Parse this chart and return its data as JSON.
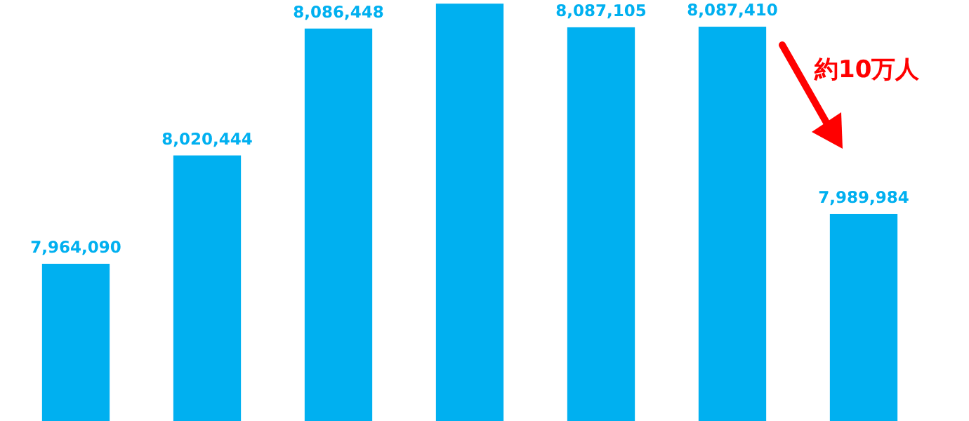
{
  "chart_data": {
    "type": "bar",
    "categories": [
      null,
      null,
      null,
      null,
      null,
      null,
      null
    ],
    "values": [
      7964090,
      8020444,
      8086448,
      8099400,
      8087105,
      8087410,
      7989984
    ],
    "value_labels": [
      "7,964,090",
      "8,020,444",
      "8,086,448",
      null,
      "8,087,105",
      "8,087,410",
      "7,989,984"
    ],
    "color": "#00b0f0",
    "ylim": [
      7882300,
      8101300
    ],
    "annotations": [
      "約10万人"
    ]
  }
}
